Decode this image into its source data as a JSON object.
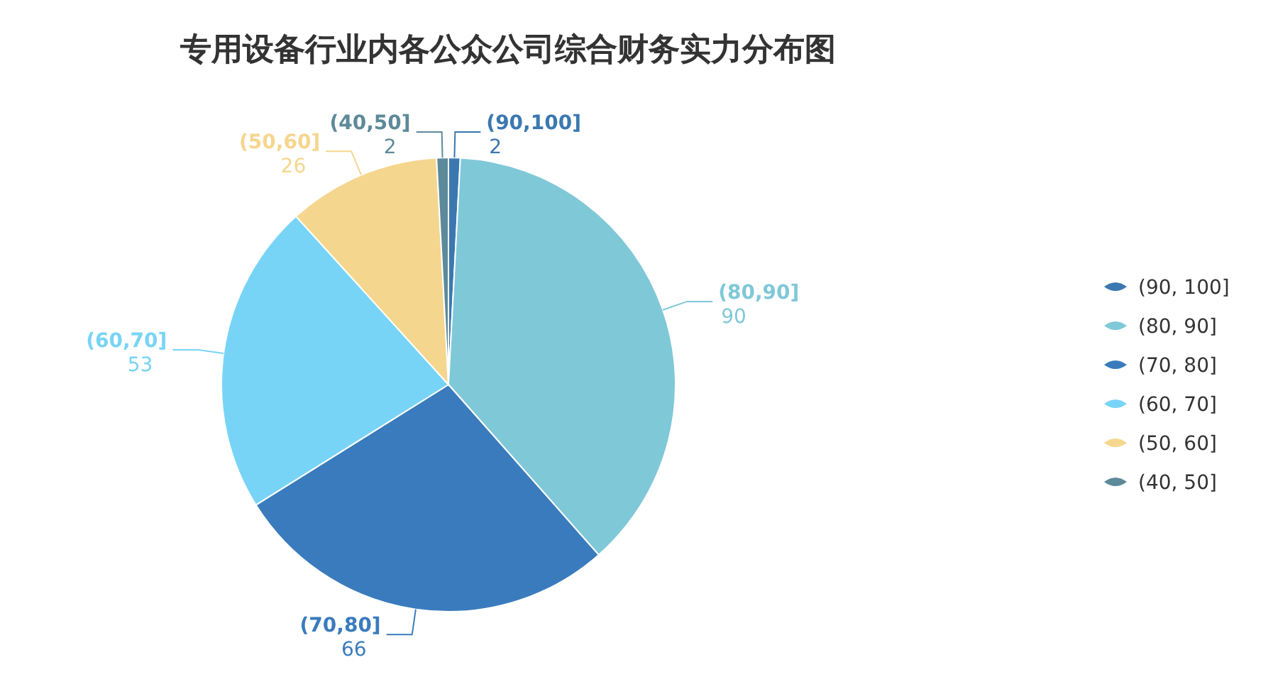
{
  "chart_data": {
    "type": "pie",
    "title": "专用设备行业内各公众公司综合财务实力分布图",
    "categories": [
      "(90, 100]",
      "(80, 90]",
      "(70, 80]",
      "(60, 70]",
      "(50, 60]",
      "(40, 50]"
    ],
    "values": [
      2,
      90,
      66,
      53,
      26,
      2
    ],
    "colors": [
      "#3b78b0",
      "#7fc8d8",
      "#3a7bbd",
      "#78d4f6",
      "#f5d68e",
      "#5d8a99"
    ],
    "annotations": [
      "(90,100]",
      "(80,90]",
      "(70,80]",
      "(60,70]",
      "(50,60]",
      "(40,50]"
    ],
    "data_labels": true,
    "legend": "right"
  }
}
